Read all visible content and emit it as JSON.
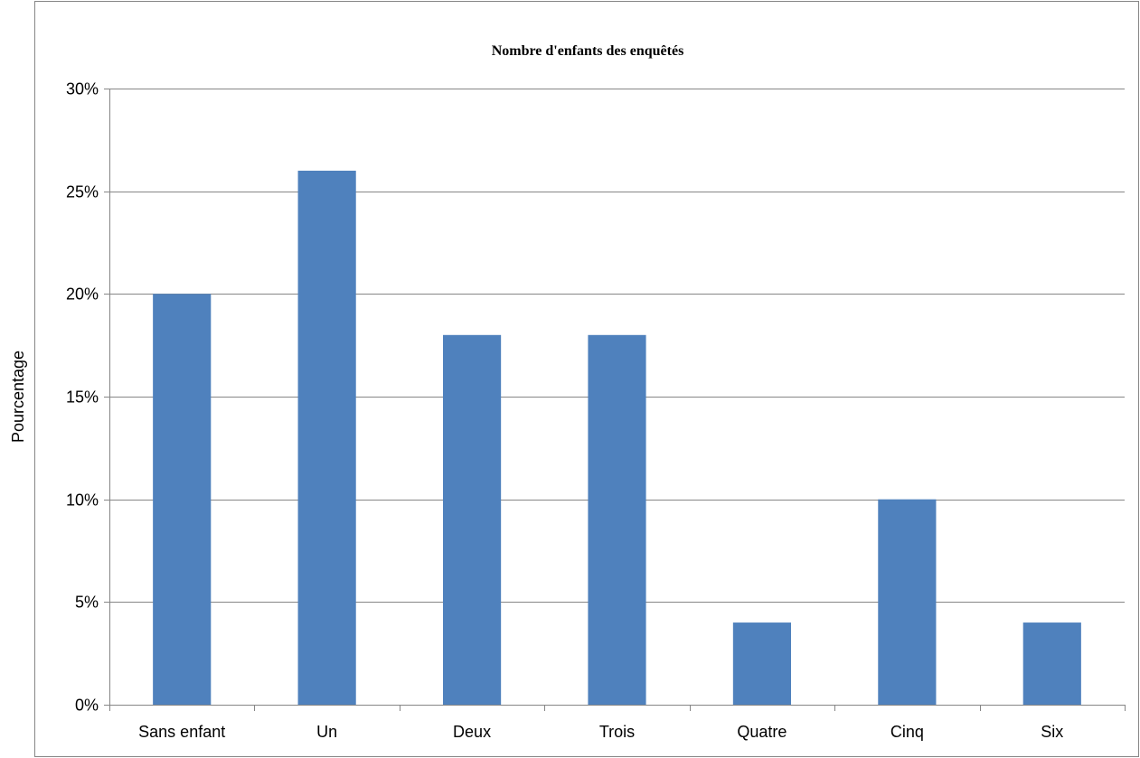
{
  "chart_data": {
    "type": "bar",
    "title": "Nombre d'enfants des enquêtés",
    "xlabel": "",
    "ylabel": "Pourcentage",
    "categories": [
      "Sans enfant",
      "Un",
      "Deux",
      "Trois",
      "Quatre",
      "Cinq",
      "Six"
    ],
    "values": [
      20,
      26,
      18,
      18,
      4,
      10,
      4
    ],
    "ylim": [
      0,
      30
    ],
    "yticks": [
      0,
      5,
      10,
      15,
      20,
      25,
      30
    ],
    "ytick_labels": [
      "0%",
      "5%",
      "10%",
      "15%",
      "20%",
      "25%",
      "30%"
    ],
    "grid": true,
    "legend": "none",
    "colors": {
      "bar": "#4F81BD",
      "grid": "#868686",
      "axis": "#868686",
      "frame": "#868686"
    }
  }
}
